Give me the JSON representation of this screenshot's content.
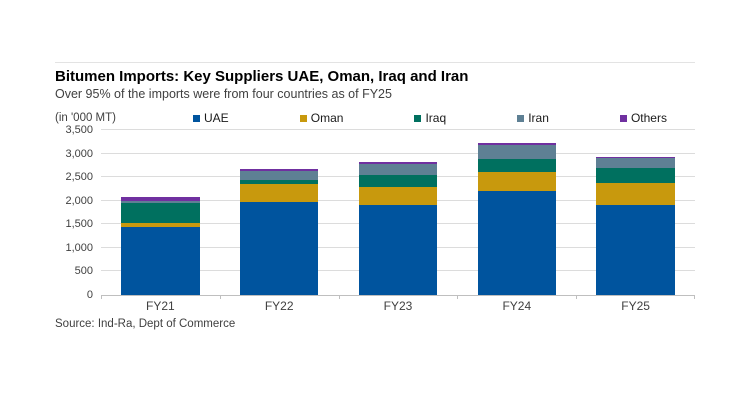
{
  "page": {
    "title": "Bitumen Imports: Key Suppliers UAE, Oman, Iraq and Iran",
    "subtitle": "Over 95% of the imports were from four countries as of FY25",
    "unit_label": "(in '000 MT)",
    "source": "Source: Ind-Ra, Dept of Commerce"
  },
  "colors": {
    "uae_blue": "#00549E",
    "oman_gold": "#C8990D",
    "iraq_teal": "#00705F",
    "iran_slate": "#5E8094",
    "others_purple": "#7030A0",
    "gridline": "#DCDCDC",
    "axis_line": "#BFBFBF",
    "text": "#404040",
    "title_text": "#000000"
  },
  "chart_data": {
    "type": "bar",
    "stacked": true,
    "title": "Bitumen Imports: Key Suppliers UAE, Oman, Iraq and Iran",
    "subtitle": "Over 95% of the imports were from four countries as of FY25",
    "ylabel": "(in '000 MT)",
    "xlabel": "",
    "categories": [
      "FY21",
      "FY22",
      "FY23",
      "FY24",
      "FY25"
    ],
    "series": [
      {
        "name": "UAE",
        "color": "#00549E",
        "values": [
          1440,
          1975,
          1920,
          2200,
          1900
        ]
      },
      {
        "name": "Oman",
        "color": "#C8990D",
        "values": [
          80,
          370,
          370,
          410,
          480
        ]
      },
      {
        "name": "Iraq",
        "color": "#00705F",
        "values": [
          430,
          100,
          265,
          270,
          310
        ]
      },
      {
        "name": "Iran",
        "color": "#5E8094",
        "values": [
          40,
          180,
          235,
          300,
          220
        ]
      },
      {
        "name": "Others",
        "color": "#7030A0",
        "values": [
          80,
          50,
          35,
          45,
          15
        ]
      }
    ],
    "totals": [
      2070,
      2675,
      2825,
      3225,
      2925
    ],
    "ylim": [
      0,
      3500
    ],
    "ytick_step": 500,
    "ytick_labels": [
      "0",
      "500",
      "1,000",
      "1,500",
      "2,000",
      "2,500",
      "3,000",
      "3,500"
    ],
    "grid": true,
    "legend_position": "top",
    "source": "Source: Ind-Ra, Dept of Commerce"
  }
}
